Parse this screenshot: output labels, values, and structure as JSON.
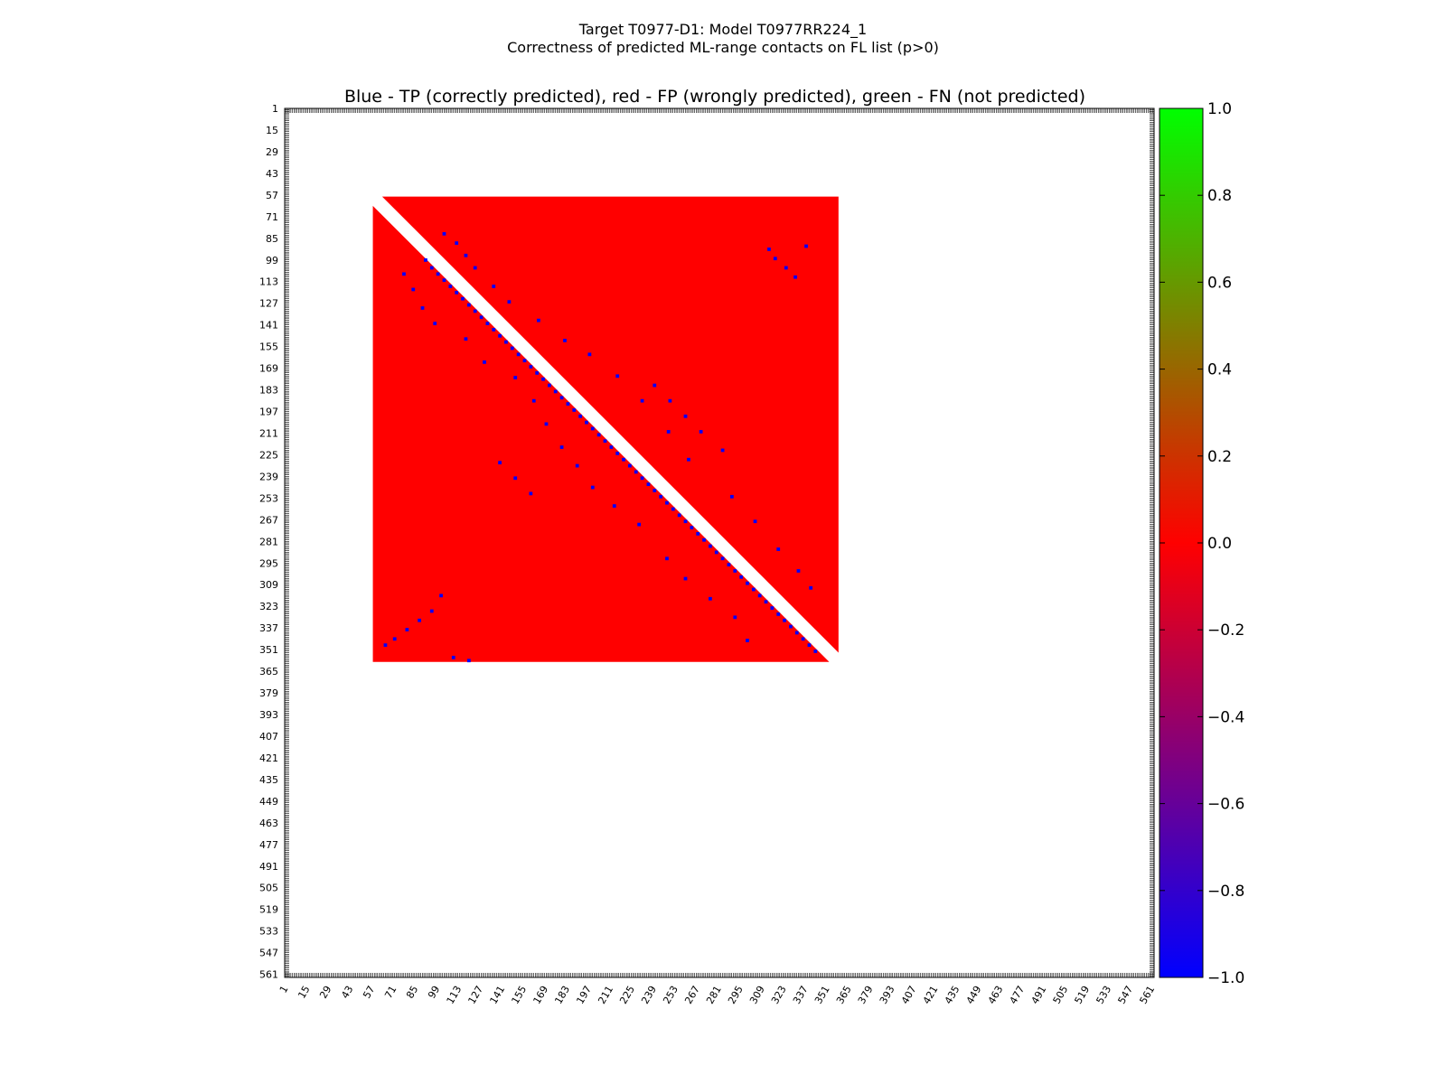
{
  "figure": {
    "suptitle_line1": "Target T0977-D1: Model T0977RR224_1",
    "suptitle_line2": "Correctness of predicted ML-range contacts on FL list (p>0)"
  },
  "chart_data": {
    "type": "heatmap",
    "title": "Blue - TP (correctly predicted), red - FP (wrongly predicted), green - FN (not predicted)",
    "xlabel": "",
    "ylabel": "",
    "tick_labels": [
      "1",
      "15",
      "29",
      "43",
      "57",
      "71",
      "85",
      "99",
      "113",
      "127",
      "141",
      "155",
      "169",
      "183",
      "197",
      "211",
      "225",
      "239",
      "253",
      "267",
      "281",
      "295",
      "309",
      "323",
      "337",
      "351",
      "365",
      "379",
      "393",
      "407",
      "421",
      "435",
      "449",
      "463",
      "477",
      "491",
      "505",
      "519",
      "533",
      "547",
      "561"
    ],
    "xlim": [
      1,
      563
    ],
    "ylim": [
      563,
      1
    ],
    "filled_region": {
      "residue_start": 58,
      "residue_end": 359,
      "color": "#ff0000",
      "category": "FP"
    },
    "diagonal_gap_residues": 12,
    "tp_contacts": [
      [
        92,
        99
      ],
      [
        96,
        104
      ],
      [
        100,
        108
      ],
      [
        104,
        112
      ],
      [
        108,
        116
      ],
      [
        112,
        120
      ],
      [
        116,
        124
      ],
      [
        120,
        128
      ],
      [
        124,
        132
      ],
      [
        128,
        136
      ],
      [
        132,
        140
      ],
      [
        136,
        144
      ],
      [
        140,
        148
      ],
      [
        144,
        152
      ],
      [
        148,
        156
      ],
      [
        152,
        160
      ],
      [
        156,
        164
      ],
      [
        160,
        168
      ],
      [
        164,
        172
      ],
      [
        168,
        176
      ],
      [
        172,
        180
      ],
      [
        176,
        184
      ],
      [
        180,
        188
      ],
      [
        184,
        192
      ],
      [
        188,
        196
      ],
      [
        192,
        200
      ],
      [
        196,
        204
      ],
      [
        200,
        208
      ],
      [
        204,
        212
      ],
      [
        208,
        216
      ],
      [
        212,
        220
      ],
      [
        216,
        224
      ],
      [
        220,
        228
      ],
      [
        224,
        232
      ],
      [
        228,
        236
      ],
      [
        232,
        240
      ],
      [
        236,
        244
      ],
      [
        240,
        248
      ],
      [
        244,
        252
      ],
      [
        248,
        256
      ],
      [
        252,
        260
      ],
      [
        256,
        264
      ],
      [
        260,
        268
      ],
      [
        264,
        272
      ],
      [
        268,
        276
      ],
      [
        272,
        280
      ],
      [
        276,
        284
      ],
      [
        280,
        288
      ],
      [
        284,
        292
      ],
      [
        288,
        296
      ],
      [
        292,
        300
      ],
      [
        296,
        304
      ],
      [
        300,
        308
      ],
      [
        304,
        312
      ],
      [
        308,
        316
      ],
      [
        312,
        320
      ],
      [
        316,
        324
      ],
      [
        320,
        328
      ],
      [
        324,
        332
      ],
      [
        328,
        336
      ],
      [
        332,
        340
      ],
      [
        336,
        344
      ],
      [
        340,
        348
      ],
      [
        344,
        352
      ],
      [
        104,
        82
      ],
      [
        112,
        88
      ],
      [
        118,
        96
      ],
      [
        124,
        104
      ],
      [
        136,
        116
      ],
      [
        146,
        126
      ],
      [
        165,
        138
      ],
      [
        182,
        151
      ],
      [
        198,
        160
      ],
      [
        216,
        174
      ],
      [
        232,
        190
      ],
      [
        249,
        210
      ],
      [
        262,
        228
      ],
      [
        290,
        252
      ],
      [
        305,
        268
      ],
      [
        320,
        286
      ],
      [
        333,
        300
      ],
      [
        341,
        311
      ],
      [
        314,
        92
      ],
      [
        318,
        98
      ],
      [
        325,
        104
      ],
      [
        331,
        110
      ],
      [
        338,
        90
      ],
      [
        78,
        108
      ],
      [
        84,
        118
      ],
      [
        90,
        130
      ],
      [
        98,
        140
      ],
      [
        118,
        150
      ],
      [
        130,
        165
      ],
      [
        150,
        175
      ],
      [
        162,
        190
      ],
      [
        170,
        205
      ],
      [
        180,
        220
      ],
      [
        190,
        232
      ],
      [
        200,
        246
      ],
      [
        214,
        258
      ],
      [
        230,
        270
      ],
      [
        248,
        292
      ],
      [
        260,
        305
      ],
      [
        276,
        318
      ],
      [
        292,
        330
      ],
      [
        300,
        345
      ],
      [
        66,
        348
      ],
      [
        72,
        344
      ],
      [
        80,
        338
      ],
      [
        88,
        332
      ],
      [
        96,
        326
      ],
      [
        102,
        316
      ],
      [
        110,
        356
      ],
      [
        120,
        358
      ],
      [
        140,
        230
      ],
      [
        150,
        240
      ],
      [
        160,
        250
      ],
      [
        240,
        180
      ],
      [
        250,
        190
      ],
      [
        260,
        200
      ],
      [
        270,
        210
      ],
      [
        284,
        222
      ]
    ],
    "fn_contacts": [],
    "colorbar": {
      "min": -1.0,
      "max": 1.0,
      "ticks": [
        "1.0",
        "0.8",
        "0.6",
        "0.4",
        "0.2",
        "0.0",
        "−0.2",
        "−0.4",
        "−0.6",
        "−0.8",
        "−1.0"
      ],
      "colors": [
        "#0000ff",
        "#ff0000",
        "#00ff00"
      ]
    }
  }
}
